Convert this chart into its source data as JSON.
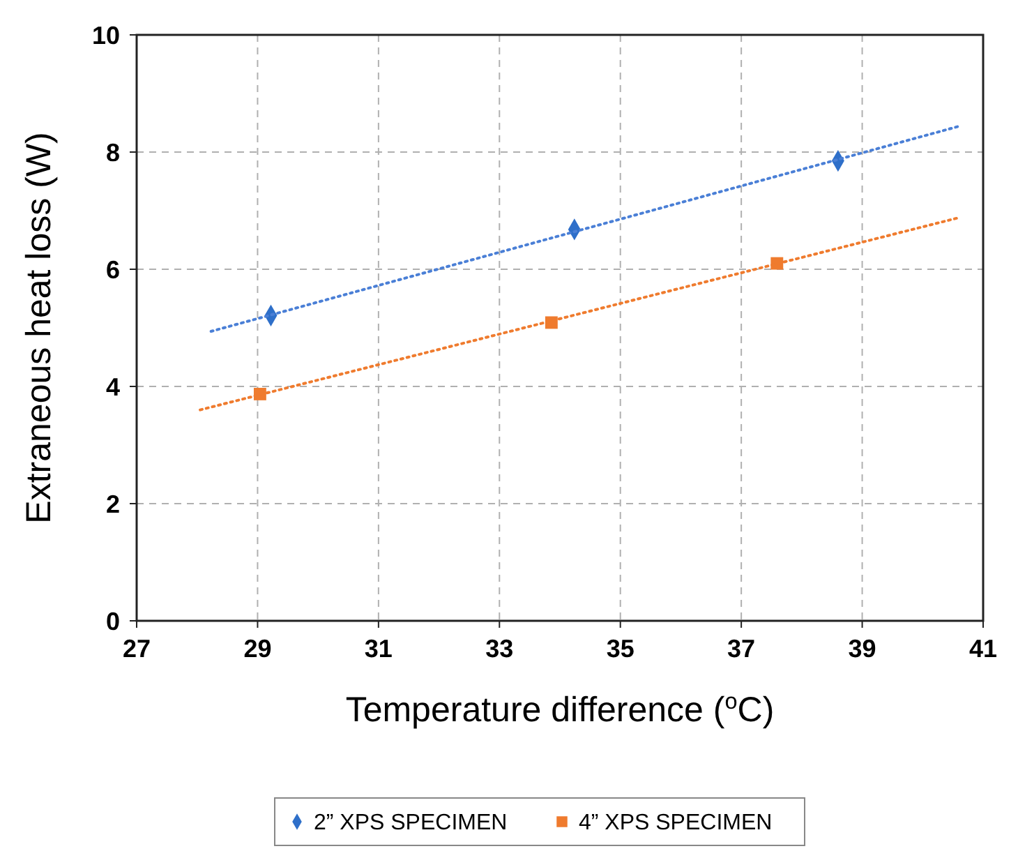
{
  "chart_data": {
    "type": "scatter",
    "xlabel": "Temperature difference ($^{o}$C)",
    "ylabel": "Extraneous heat loss (W)",
    "xlim": [
      27,
      41
    ],
    "xticks": [
      27,
      29,
      31,
      33,
      35,
      37,
      39,
      41
    ],
    "ylim": [
      0,
      10
    ],
    "yticks": [
      0,
      2,
      4,
      6,
      8,
      10
    ],
    "grid": true,
    "legend": "bottom",
    "series": [
      {
        "name": "2” XPS SPECIMEN",
        "color": "#2e6fc9",
        "marker": "diamond",
        "x": [
          29.22,
          34.24,
          38.6
        ],
        "values": [
          5.21,
          6.68,
          7.85
        ]
      },
      {
        "name": "4” XPS SPECIMEN",
        "color": "#ef7b2e",
        "marker": "square",
        "x": [
          29.04,
          33.86,
          37.59
        ],
        "values": [
          3.87,
          5.09,
          6.1
        ]
      },
      {
        "type": "line",
        "color": "#4a7fd6",
        "line_style": "dotted",
        "marker": "none",
        "x": [
          28.23,
          40.6
        ],
        "values": [
          4.94,
          8.44
        ]
      },
      {
        "type": "line",
        "color": "#ef7b2e",
        "line_style": "dotted",
        "marker": "none",
        "x": [
          28.05,
          40.56
        ],
        "values": [
          3.6,
          6.87
        ]
      }
    ]
  }
}
